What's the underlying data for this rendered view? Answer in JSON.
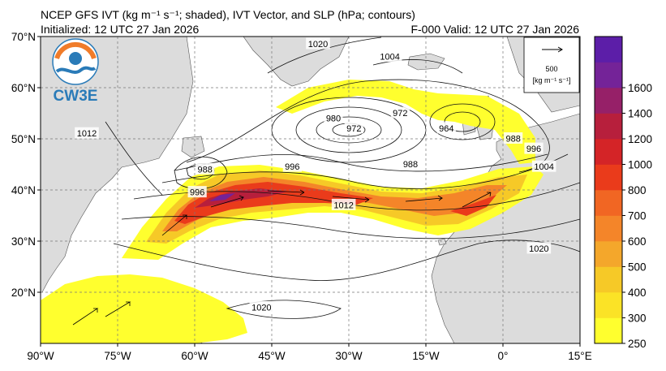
{
  "title": {
    "line1": "NCEP GFS IVT (kg m⁻¹ s⁻¹; shaded), IVT Vector, and SLP (hPa; contours)",
    "init": "Initialized: 12 UTC 27 Jan 2026",
    "valid": "F-000  Valid: 12 UTC 27 Jan 2026"
  },
  "logo": {
    "text": "CW3E",
    "icon": "cw3e-logo-icon"
  },
  "vector_key": {
    "value": "500",
    "unit": "[kg m⁻¹ s⁻¹]"
  },
  "axes": {
    "lat_labels": [
      "70°N",
      "60°N",
      "50°N",
      "40°N",
      "30°N",
      "20°N"
    ],
    "lon_labels": [
      "90°W",
      "75°W",
      "60°W",
      "45°W",
      "30°W",
      "15°W",
      "0°",
      "15°E"
    ],
    "lon_range": [
      -90,
      15
    ],
    "lat_range": [
      10,
      70
    ]
  },
  "colorbar": {
    "levels": [
      "250",
      "300",
      "400",
      "500",
      "600",
      "700",
      "800",
      "1000",
      "1200",
      "1400",
      "1600"
    ],
    "colors": [
      "#ffff2e",
      "#fbe326",
      "#f6c927",
      "#f4a72b",
      "#f48529",
      "#f16623",
      "#ea3b1b",
      "#d42427",
      "#b71f3c",
      "#962068",
      "#742398",
      "#5c1ea8"
    ]
  },
  "slp_labels": [
    {
      "text": "1020",
      "lon": -36,
      "lat": 68.5
    },
    {
      "text": "1004",
      "lon": -22,
      "lat": 66
    },
    {
      "text": "980",
      "lon": -33,
      "lat": 54
    },
    {
      "text": "972",
      "lon": -29,
      "lat": 52
    },
    {
      "text": "972",
      "lon": -20,
      "lat": 55
    },
    {
      "text": "964",
      "lon": -11,
      "lat": 52
    },
    {
      "text": "988",
      "lon": 2,
      "lat": 50
    },
    {
      "text": "996",
      "lon": 6,
      "lat": 48
    },
    {
      "text": "1004",
      "lon": 8,
      "lat": 44.5
    },
    {
      "text": "1012",
      "lon": -81,
      "lat": 51
    },
    {
      "text": "988",
      "lon": -58,
      "lat": 44
    },
    {
      "text": "996",
      "lon": -59.5,
      "lat": 39.5
    },
    {
      "text": "996",
      "lon": -41,
      "lat": 44.5
    },
    {
      "text": "988",
      "lon": -18,
      "lat": 45
    },
    {
      "text": "1012",
      "lon": -31,
      "lat": 37
    },
    {
      "text": "1020",
      "lon": 7,
      "lat": 28.5
    },
    {
      "text": "1020",
      "lon": -47,
      "lat": 17
    }
  ]
}
